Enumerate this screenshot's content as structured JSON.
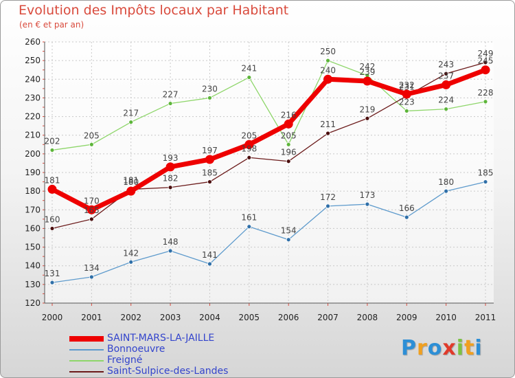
{
  "title": "Evolution des Impôts locaux par Habitant",
  "subtitle": "(en € et par an)",
  "logo": {
    "letters": [
      "P",
      "r",
      "o",
      "x",
      "i",
      "t",
      "i"
    ],
    "colors": [
      "#2d8fd6",
      "#f0a020",
      "#2d8fd6",
      "#e03a2a",
      "#7cc242",
      "#f0a020",
      "#2d8fd6"
    ]
  },
  "chart_data": {
    "type": "line",
    "x": [
      "2000",
      "2001",
      "2002",
      "2003",
      "2004",
      "2005",
      "2006",
      "2007",
      "2008",
      "2009",
      "2010",
      "2011"
    ],
    "ylim": [
      120,
      260
    ],
    "yticks": [
      120,
      130,
      140,
      150,
      160,
      170,
      180,
      190,
      200,
      210,
      220,
      230,
      240,
      250,
      260
    ],
    "grid": true,
    "legend_position": "bottom-left",
    "series": [
      {
        "name": "SAINT-MARS-LA-JAILLE",
        "color": "#ee0000",
        "values": [
          181,
          170,
          180,
          193,
          197,
          205,
          216,
          240,
          239,
          232,
          237,
          245
        ]
      },
      {
        "name": "Bonnoeuvre",
        "color": "#5d9acc",
        "values": [
          131,
          134,
          142,
          148,
          141,
          161,
          154,
          172,
          173,
          166,
          180,
          185
        ]
      },
      {
        "name": "Freigné",
        "color": "#8ed66a",
        "values": [
          202,
          205,
          217,
          227,
          230,
          241,
          205,
          250,
          242,
          223,
          224,
          228
        ]
      },
      {
        "name": "Saint-Sulpice-des-Landes",
        "color": "#6b1a1a",
        "values": [
          160,
          165,
          181,
          182,
          185,
          198,
          196,
          211,
          219,
          231,
          243,
          249
        ]
      }
    ]
  }
}
